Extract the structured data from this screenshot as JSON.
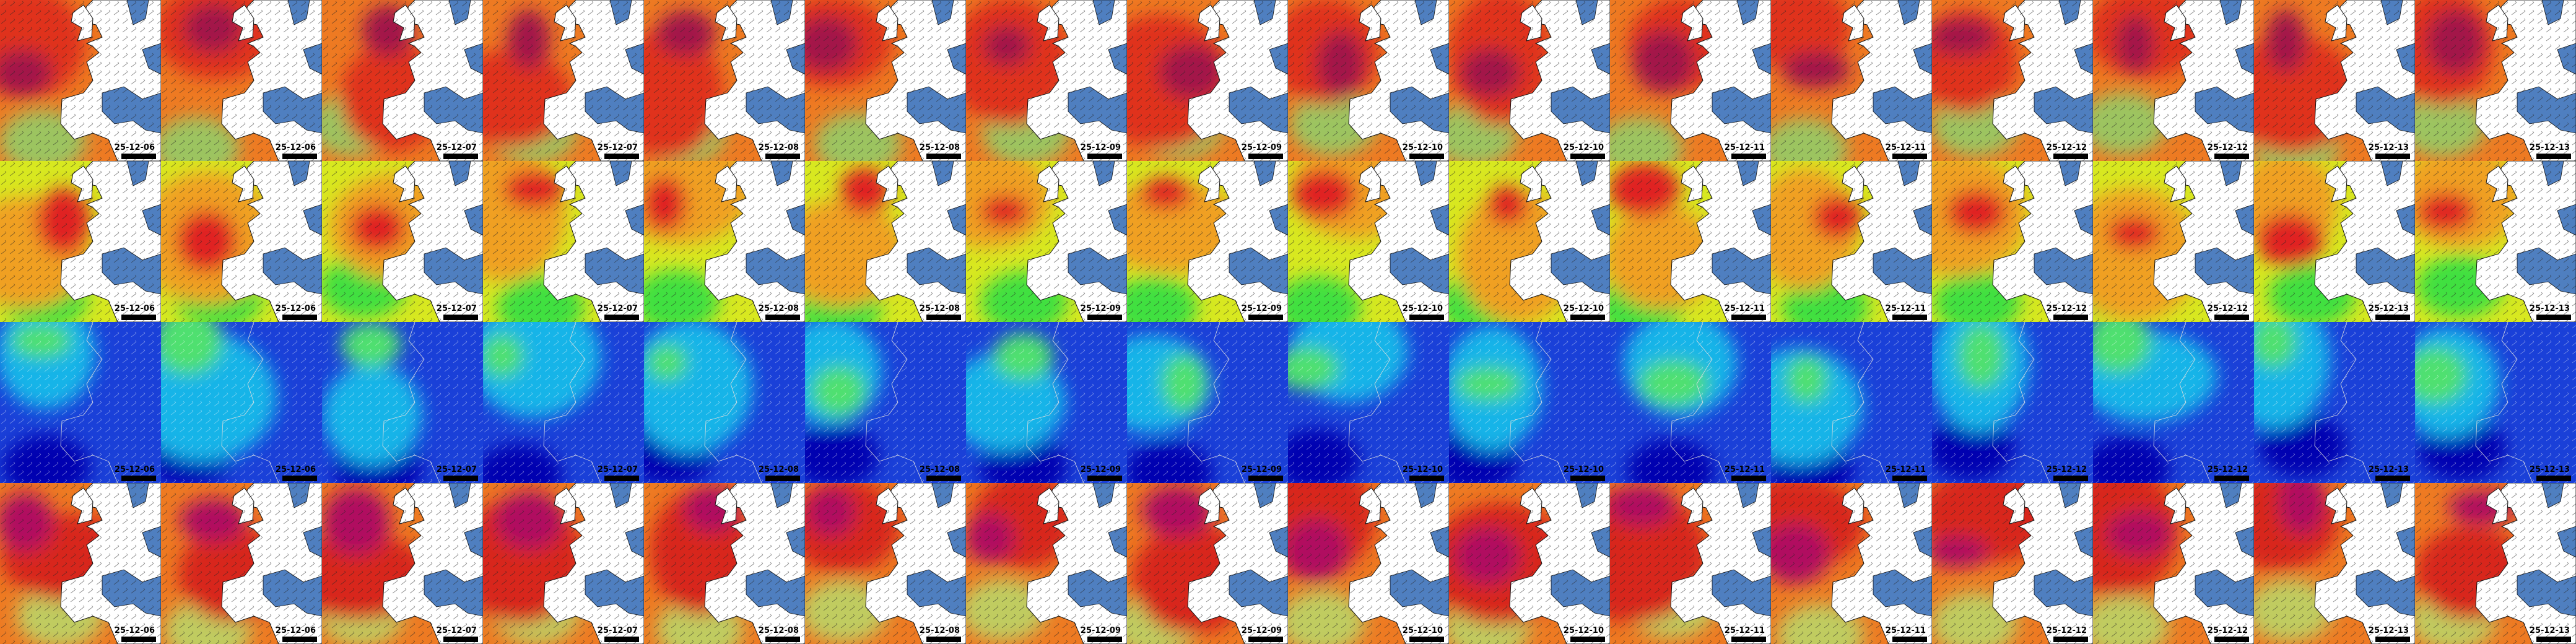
{
  "rows": [
    {
      "tiles": [
        {
          "date": "25-12-06"
        },
        {
          "date": "25-12-06"
        },
        {
          "date": "25-12-07"
        },
        {
          "date": "25-12-07"
        },
        {
          "date": "25-12-08"
        },
        {
          "date": "25-12-08"
        },
        {
          "date": "25-12-09"
        },
        {
          "date": "25-12-09"
        },
        {
          "date": "25-12-10"
        },
        {
          "date": "25-12-10"
        },
        {
          "date": "25-12-11"
        },
        {
          "date": "25-12-11"
        },
        {
          "date": "25-12-12"
        },
        {
          "date": "25-12-12"
        },
        {
          "date": "25-12-13"
        },
        {
          "date": "25-12-13"
        }
      ]
    },
    {
      "tiles": [
        {
          "date": "25-12-06"
        },
        {
          "date": "25-12-06"
        },
        {
          "date": "25-12-07"
        },
        {
          "date": "25-12-07"
        },
        {
          "date": "25-12-08"
        },
        {
          "date": "25-12-08"
        },
        {
          "date": "25-12-09"
        },
        {
          "date": "25-12-09"
        },
        {
          "date": "25-12-10"
        },
        {
          "date": "25-12-10"
        },
        {
          "date": "25-12-11"
        },
        {
          "date": "25-12-11"
        },
        {
          "date": "25-12-12"
        },
        {
          "date": "25-12-12"
        },
        {
          "date": "25-12-13"
        },
        {
          "date": "25-12-13"
        }
      ]
    },
    {
      "tiles": [
        {
          "date": "25-12-06"
        },
        {
          "date": "25-12-06"
        },
        {
          "date": "25-12-07"
        },
        {
          "date": "25-12-07"
        },
        {
          "date": "25-12-08"
        },
        {
          "date": "25-12-08"
        },
        {
          "date": "25-12-09"
        },
        {
          "date": "25-12-09"
        },
        {
          "date": "25-12-10"
        },
        {
          "date": "25-12-10"
        },
        {
          "date": "25-12-11"
        },
        {
          "date": "25-12-11"
        },
        {
          "date": "25-12-12"
        },
        {
          "date": "25-12-12"
        },
        {
          "date": "25-12-13"
        },
        {
          "date": "25-12-13"
        }
      ]
    },
    {
      "tiles": [
        {
          "date": "25-12-06"
        },
        {
          "date": "25-12-06"
        },
        {
          "date": "25-12-07"
        },
        {
          "date": "25-12-07"
        },
        {
          "date": "25-12-08"
        },
        {
          "date": "25-12-08"
        },
        {
          "date": "25-12-09"
        },
        {
          "date": "25-12-09"
        },
        {
          "date": "25-12-10"
        },
        {
          "date": "25-12-10"
        },
        {
          "date": "25-12-11"
        },
        {
          "date": "25-12-11"
        },
        {
          "date": "25-12-12"
        },
        {
          "date": "25-12-12"
        },
        {
          "date": "25-12-13"
        },
        {
          "date": "25-12-13"
        }
      ]
    }
  ]
}
